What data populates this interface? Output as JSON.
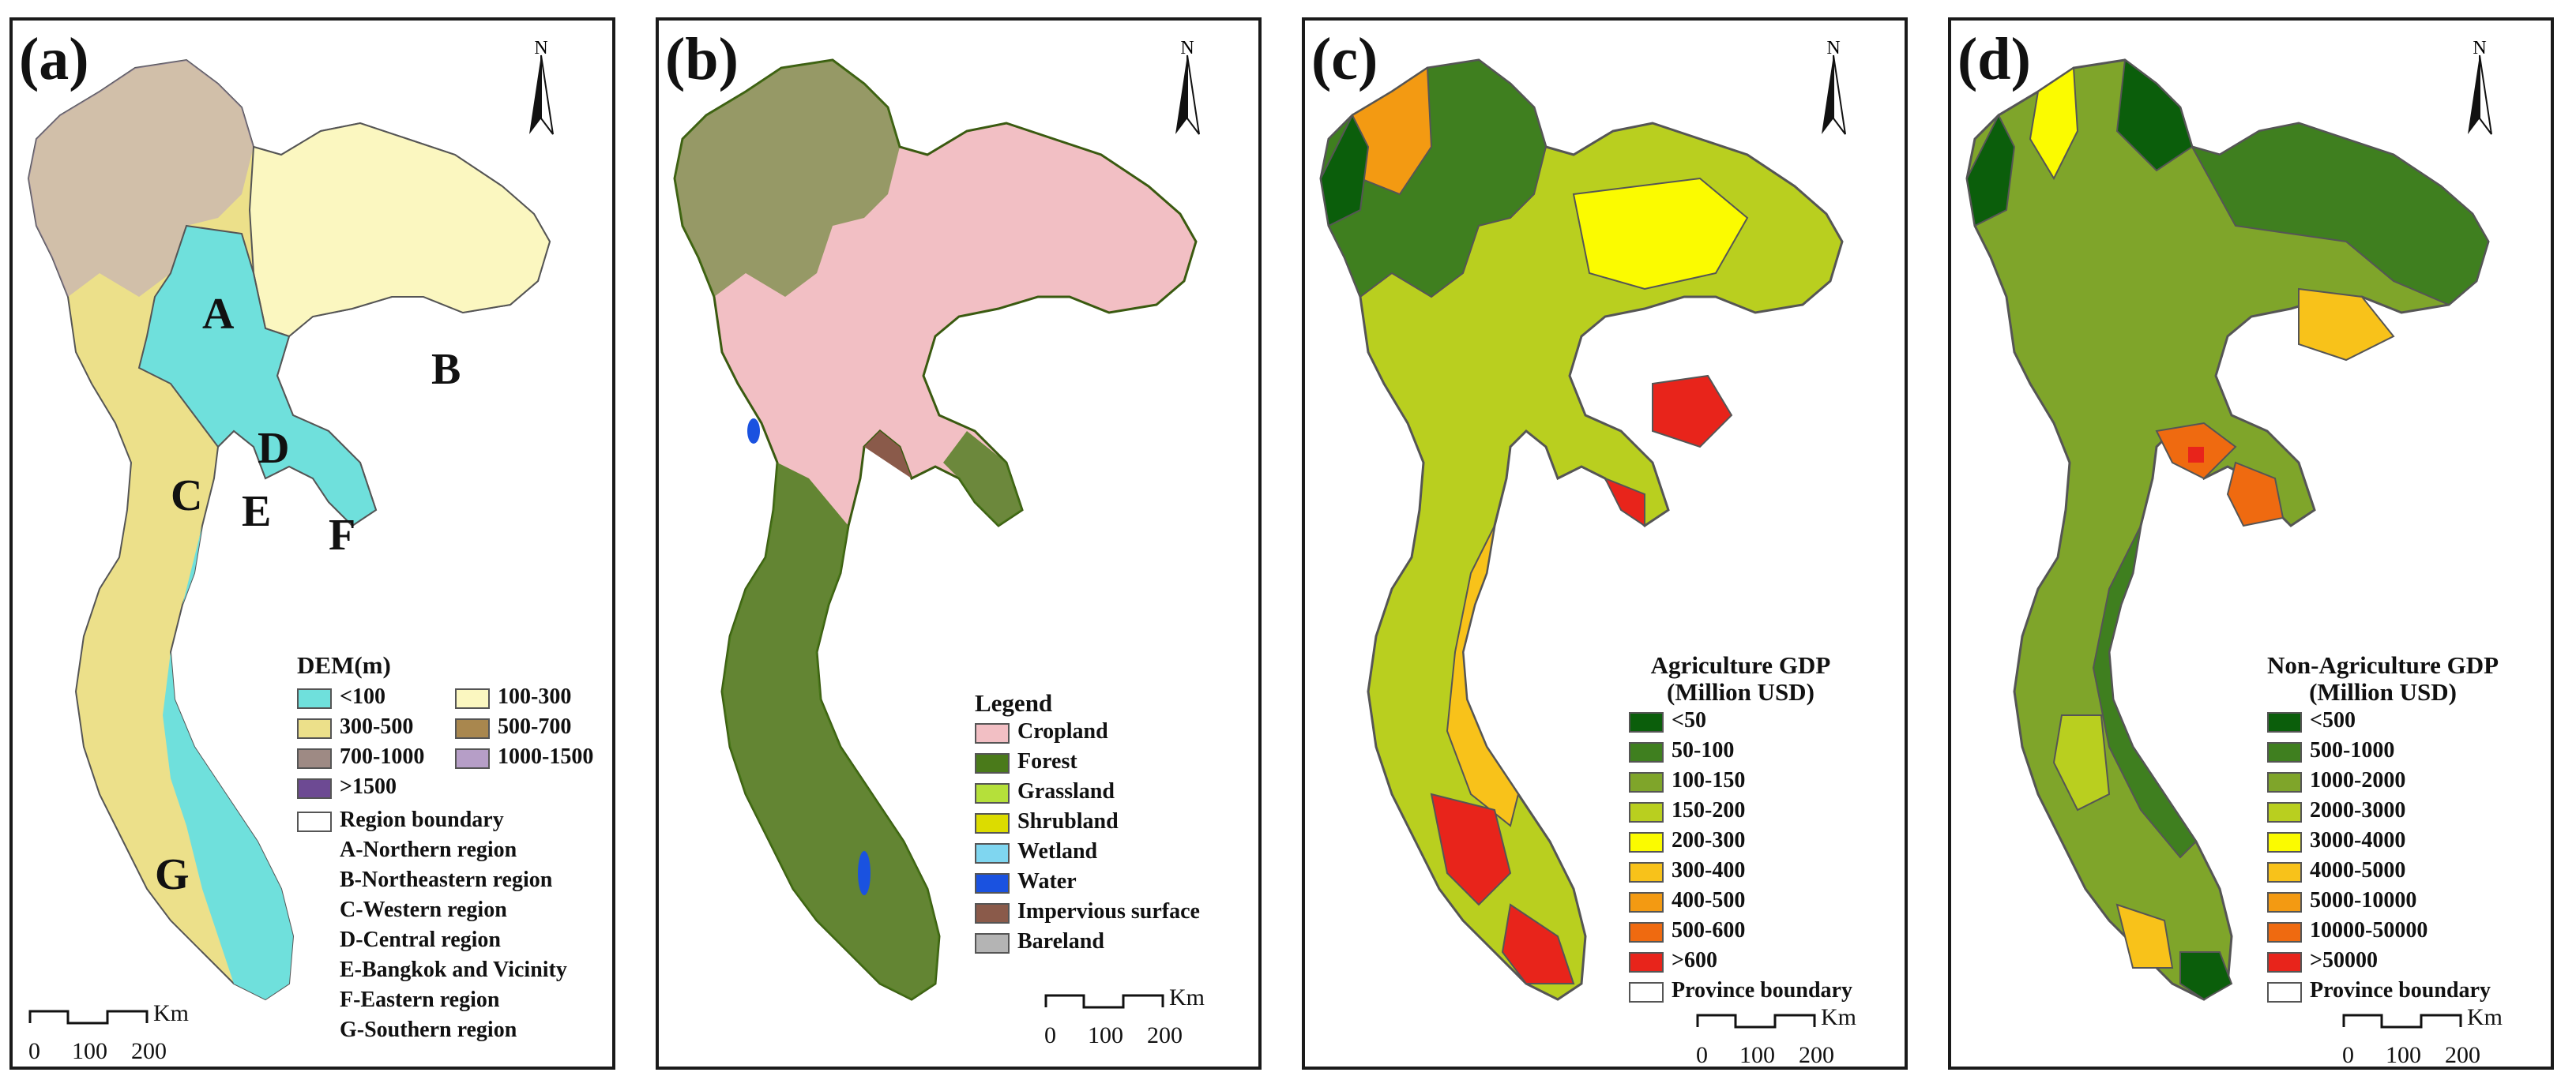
{
  "north_letter": "N",
  "scale": {
    "unit": "Km",
    "ticks": [
      "0",
      "100",
      "200"
    ]
  },
  "panels": {
    "a": {
      "label": "(a)",
      "region_letters": [
        "A",
        "B",
        "C",
        "D",
        "E",
        "F",
        "G"
      ],
      "legend_title": "DEM(m)",
      "dem_classes": [
        {
          "label": "<100",
          "color": "#6fe0dc"
        },
        {
          "label": "100-300",
          "color": "#fbf7c0"
        },
        {
          "label": "300-500",
          "color": "#ece08a"
        },
        {
          "label": "500-700",
          "color": "#a9874e"
        },
        {
          "label": "700-1000",
          "color": "#9e8a84"
        },
        {
          "label": "1000-1500",
          "color": "#b69ec7"
        },
        {
          "label": ">1500",
          "color": "#6d4a93"
        }
      ],
      "boundary_label": "Region boundary",
      "regions": [
        "A-Northern region",
        "B-Northeastern region",
        "C-Western region",
        "D-Central region",
        "E-Bangkok and Vicinity",
        "F-Eastern region",
        "G-Southern region"
      ]
    },
    "b": {
      "label": "(b)",
      "legend_title": "Legend",
      "classes": [
        {
          "label": "Cropland",
          "color": "#f2bfc4"
        },
        {
          "label": "Forest",
          "color": "#4a7a1a"
        },
        {
          "label": "Grassland",
          "color": "#b5e03a"
        },
        {
          "label": "Shrubland",
          "color": "#dcdc00"
        },
        {
          "label": "Wetland",
          "color": "#7fd6f0"
        },
        {
          "label": "Water",
          "color": "#1a52e0"
        },
        {
          "label": "Impervious surface",
          "color": "#8a5a4a"
        },
        {
          "label": "Bareland",
          "color": "#b4b4b4"
        }
      ]
    },
    "c": {
      "label": "(c)",
      "legend_title_1": "Agriculture GDP",
      "legend_title_2": "(Million USD)",
      "classes": [
        {
          "label": "<50",
          "color": "#0b5e0b"
        },
        {
          "label": "50-100",
          "color": "#3f7f1f"
        },
        {
          "label": "100-150",
          "color": "#7fa52a"
        },
        {
          "label": "150-200",
          "color": "#b9cf1f"
        },
        {
          "label": "200-300",
          "color": "#fbfb00"
        },
        {
          "label": "300-400",
          "color": "#f8c21a"
        },
        {
          "label": "400-500",
          "color": "#f39a12"
        },
        {
          "label": "500-600",
          "color": "#ef6a10"
        },
        {
          "label": ">600",
          "color": "#e8241b"
        }
      ],
      "boundary_label": "Province boundary"
    },
    "d": {
      "label": "(d)",
      "legend_title_1": "Non-Agriculture GDP",
      "legend_title_2": "(Million USD)",
      "classes": [
        {
          "label": "<500",
          "color": "#0b5e0b"
        },
        {
          "label": "500-1000",
          "color": "#3f7f1f"
        },
        {
          "label": "1000-2000",
          "color": "#7fa52a"
        },
        {
          "label": "2000-3000",
          "color": "#b9cf1f"
        },
        {
          "label": "3000-4000",
          "color": "#fbfb00"
        },
        {
          "label": "4000-5000",
          "color": "#f8c21a"
        },
        {
          "label": "5000-10000",
          "color": "#f39a12"
        },
        {
          "label": "10000-50000",
          "color": "#ef6a10"
        },
        {
          "label": ">50000",
          "color": "#e8241b"
        }
      ],
      "boundary_label": "Province boundary"
    }
  }
}
